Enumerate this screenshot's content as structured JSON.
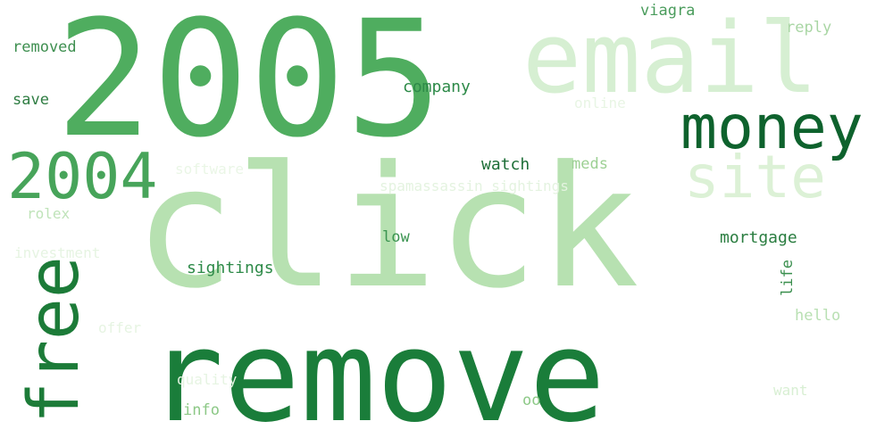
{
  "words": [
    {
      "text": "click",
      "color": "#b7e1b1"
    },
    {
      "text": "remove",
      "color": "#1a7d3a"
    },
    {
      "text": "2005",
      "color": "#4fad5f"
    },
    {
      "text": "email",
      "color": "#d6efd2"
    },
    {
      "text": "money",
      "color": "#0e622d"
    },
    {
      "text": "free",
      "color": "#1c7b38"
    },
    {
      "text": "2004",
      "color": "#47a45a"
    },
    {
      "text": "site",
      "color": "#dcf1d6"
    },
    {
      "text": "mortgage",
      "color": "#2a7d40"
    },
    {
      "text": "sightings",
      "color": "#2d8a48"
    },
    {
      "text": "company",
      "color": "#2d8a48"
    },
    {
      "text": "watch",
      "color": "#1d6e37"
    },
    {
      "text": "removed",
      "color": "#3e8f50"
    },
    {
      "text": "viagra",
      "color": "#4a9c5c"
    },
    {
      "text": "reply",
      "color": "#a9d6a4"
    },
    {
      "text": "save",
      "color": "#2f7d43"
    },
    {
      "text": "meds",
      "color": "#9dd094"
    },
    {
      "text": "low",
      "color": "#3a9450"
    },
    {
      "text": "hello",
      "color": "#b9e0b3"
    },
    {
      "text": "life",
      "color": "#3a8f4e"
    },
    {
      "text": "info",
      "color": "#8cc886"
    },
    {
      "text": "oo",
      "color": "#8dc987"
    },
    {
      "text": "rolex",
      "color": "#bfe3b9"
    },
    {
      "text": "want",
      "color": "#d8efd3"
    },
    {
      "text": "online",
      "color": "#e8f5e4"
    },
    {
      "text": "software",
      "color": "#eaf6e6"
    },
    {
      "text": "spamassassin sightings",
      "color": "#e4f3e0"
    },
    {
      "text": "investment",
      "color": "#e6f4e2"
    },
    {
      "text": "offer",
      "color": "#e6f4e2"
    },
    {
      "text": "quality",
      "color": "#e6f4e2"
    }
  ]
}
